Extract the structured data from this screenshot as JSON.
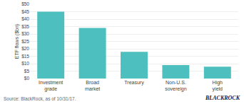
{
  "chart_data": {
    "type": "bar",
    "categories": [
      "Investment grade",
      "Broad market",
      "Treasury",
      "Non-U.S. sovereign",
      "High yield"
    ],
    "values": [
      45,
      34,
      18,
      9,
      8
    ],
    "color": "#4dbfbf",
    "ylabel": "ETF flows ($bn)",
    "ylim": [
      0,
      50
    ],
    "yticks": [
      {
        "value": 0,
        "label": "$0"
      },
      {
        "value": 5,
        "label": "$5"
      },
      {
        "value": 10,
        "label": "$10"
      },
      {
        "value": 15,
        "label": "$15"
      },
      {
        "value": 20,
        "label": "$20"
      },
      {
        "value": 25,
        "label": "$25"
      },
      {
        "value": 30,
        "label": "$30"
      },
      {
        "value": 35,
        "label": "$35"
      },
      {
        "value": 40,
        "label": "$40"
      },
      {
        "value": 45,
        "label": "$45"
      },
      {
        "value": 50,
        "label": "$50"
      }
    ],
    "grid": true,
    "annotations": [
      "Source: BlackRock, as of 10/31/17.",
      "BLACKROCK"
    ]
  }
}
